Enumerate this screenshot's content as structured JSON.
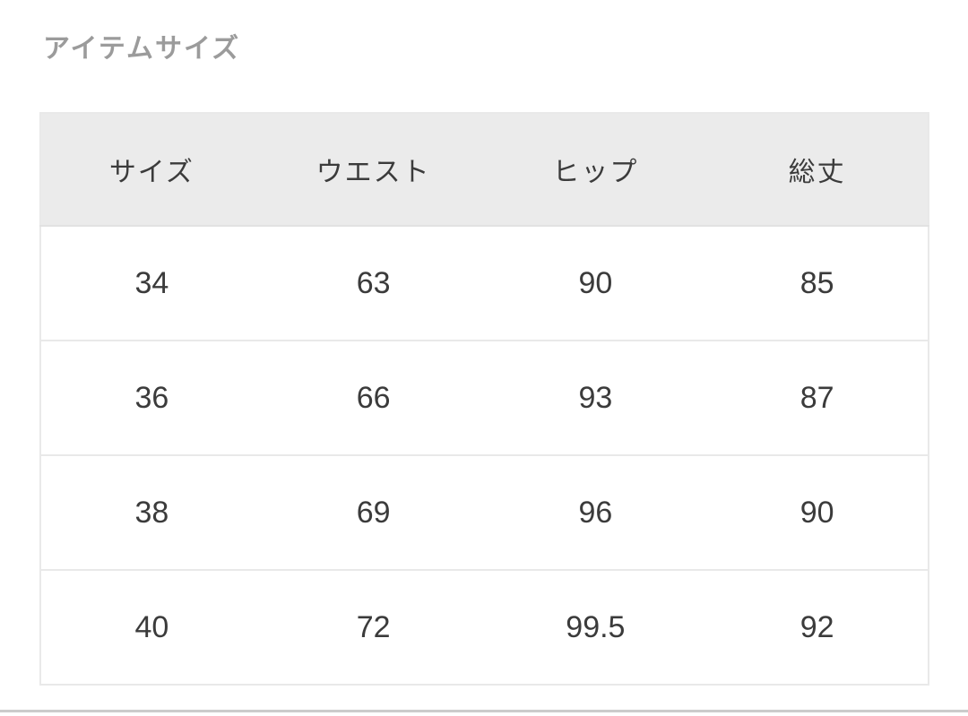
{
  "page": {
    "title": "アイテムサイズ"
  },
  "table": {
    "columns": [
      "サイズ",
      "ウエスト",
      "ヒップ",
      "総丈"
    ],
    "rows": [
      [
        "34",
        "63",
        "90",
        "85"
      ],
      [
        "36",
        "66",
        "93",
        "87"
      ],
      [
        "38",
        "69",
        "96",
        "90"
      ],
      [
        "40",
        "72",
        "99.5",
        "92"
      ]
    ]
  },
  "colors": {
    "title_text": "#9b9b9b",
    "header_bg": "#ebebeb",
    "cell_text": "#3b3b3b",
    "table_border": "#e9e9e9",
    "bottom_divider": "#cbcbcb"
  }
}
